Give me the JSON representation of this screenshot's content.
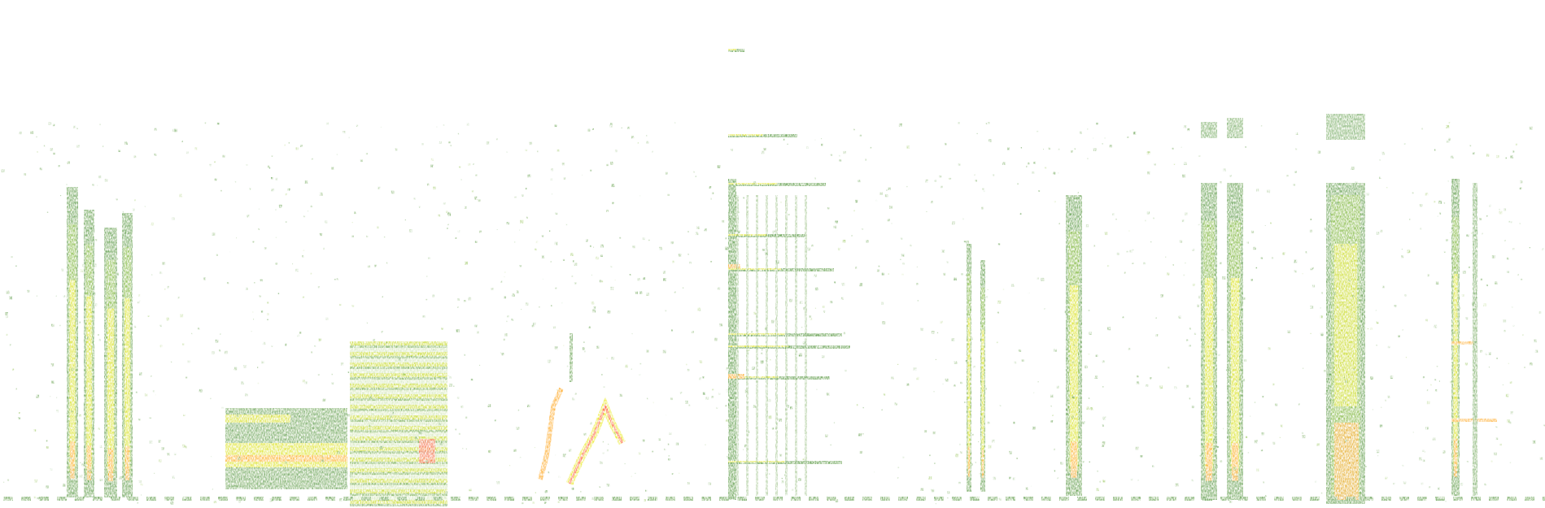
{
  "chart_data": {
    "type": "heatmap",
    "colormap": {
      "background": "#ffffff",
      "low": "#2e7d12",
      "mid_low": "#6fae1c",
      "mid": "#e6e600",
      "high": "#ff9a00",
      "peak": "#ff3a10"
    },
    "grid": false,
    "legend": "none"
  }
}
